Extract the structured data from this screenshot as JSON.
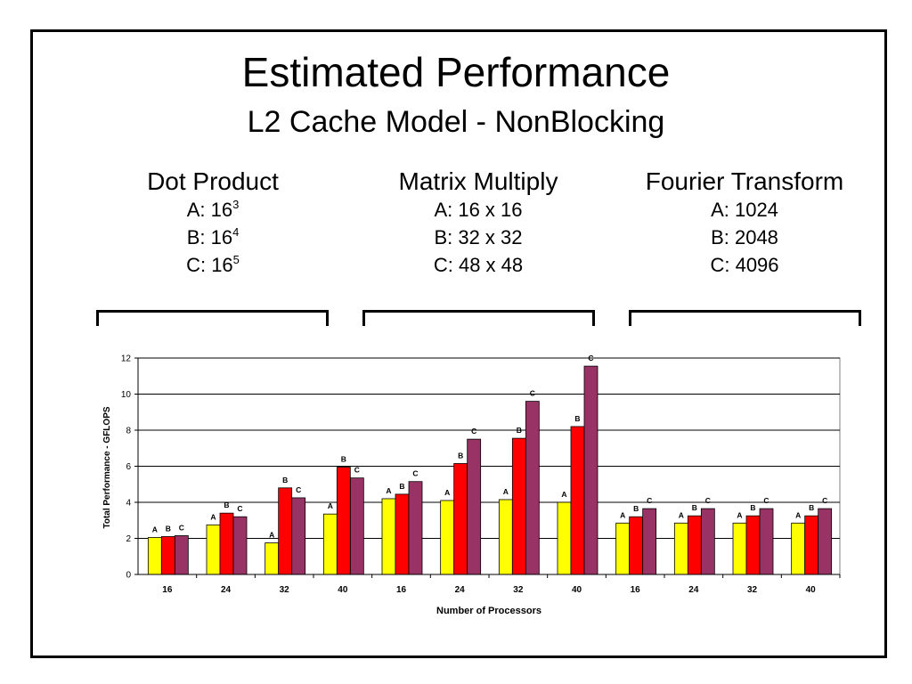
{
  "slide": {
    "title": "Estimated Performance",
    "subtitle": "L2 Cache Model - NonBlocking"
  },
  "groups": [
    {
      "title": "Dot Product",
      "lines": [
        {
          "base": "A: 16",
          "sup": "3"
        },
        {
          "base": "B: 16",
          "sup": "4"
        },
        {
          "base": "C: 16",
          "sup": "5"
        }
      ]
    },
    {
      "title": "Matrix Multiply",
      "lines": [
        {
          "base": "A: 16 x 16",
          "sup": ""
        },
        {
          "base": "B: 32 x 32",
          "sup": ""
        },
        {
          "base": "C: 48 x 48",
          "sup": ""
        }
      ]
    },
    {
      "title": "Fourier Transform",
      "lines": [
        {
          "base": "A: 1024",
          "sup": ""
        },
        {
          "base": "B: 2048",
          "sup": ""
        },
        {
          "base": "C: 4096",
          "sup": ""
        }
      ]
    }
  ],
  "chart_data": {
    "type": "bar",
    "xlabel": "Number of Processors",
    "ylabel": "Total Performance - GFLOPS",
    "ylim": [
      0,
      12
    ],
    "yticks": [
      0,
      2,
      4,
      6,
      8,
      10,
      12
    ],
    "grid": true,
    "categories": [
      "16",
      "24",
      "32",
      "40",
      "16",
      "24",
      "32",
      "40",
      "16",
      "24",
      "32",
      "40"
    ],
    "series": [
      {
        "name": "A",
        "color": "#ffff00",
        "values": [
          2.05,
          2.75,
          1.75,
          3.35,
          4.2,
          4.1,
          4.15,
          4.0,
          2.85,
          2.85,
          2.85,
          2.85
        ]
      },
      {
        "name": "B",
        "color": "#ff0000",
        "values": [
          2.1,
          3.4,
          4.8,
          5.95,
          4.45,
          6.15,
          7.55,
          8.2,
          3.2,
          3.25,
          3.25,
          3.25
        ]
      },
      {
        "name": "C",
        "color": "#993366",
        "values": [
          2.15,
          3.2,
          4.25,
          5.35,
          5.15,
          7.5,
          9.6,
          11.55,
          3.65,
          3.65,
          3.65,
          3.65
        ]
      }
    ]
  }
}
